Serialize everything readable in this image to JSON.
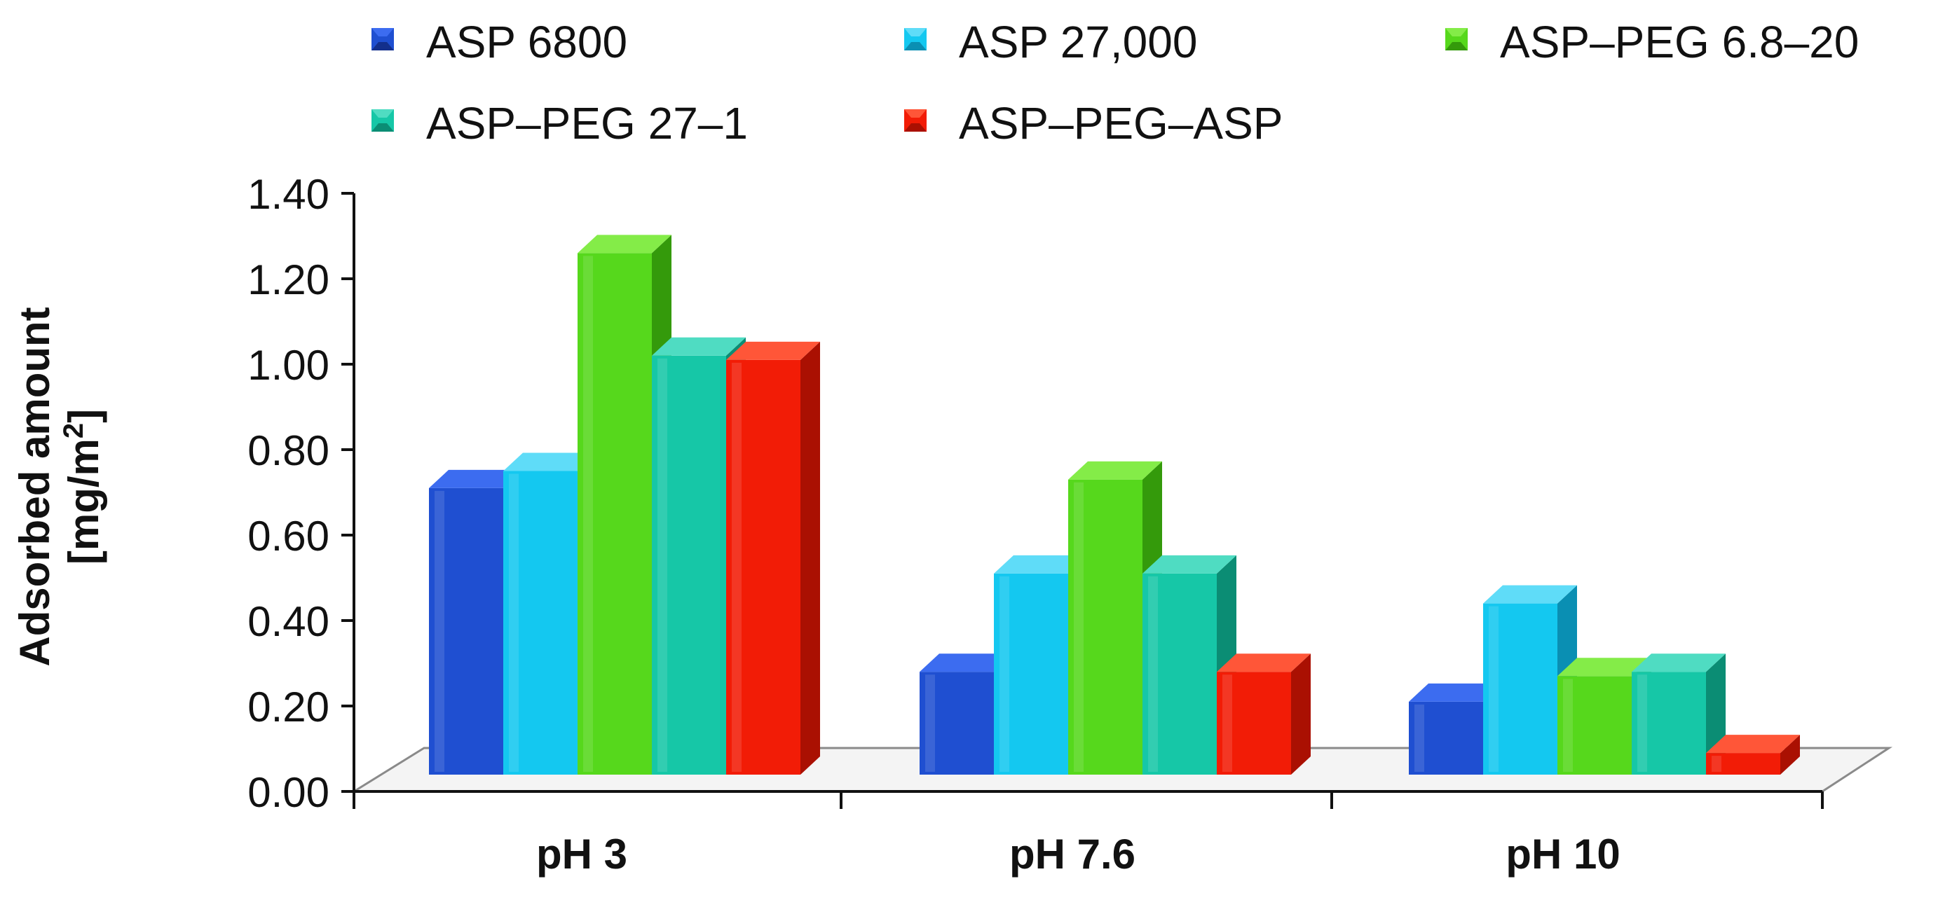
{
  "chart_data": {
    "type": "bar",
    "style": "3d-clustered",
    "title": "",
    "xlabel": "",
    "ylabel_lines": [
      "Adsorbed amount",
      "[mg/m²]"
    ],
    "ylabel_parts": {
      "main": "Adsorbed amount",
      "unit_prefix": "[mg/m",
      "unit_sup": "2",
      "unit_suffix": "]"
    },
    "ylim": [
      0,
      1.4
    ],
    "y_ticks": [
      "0.00",
      "0.20",
      "0.40",
      "0.60",
      "0.80",
      "1.00",
      "1.20",
      "1.40"
    ],
    "y_tick_values": [
      0,
      0.2,
      0.4,
      0.6,
      0.8,
      1.0,
      1.2,
      1.4
    ],
    "categories": [
      "pH 3",
      "pH 7.6",
      "pH 10"
    ],
    "legend_position": "top",
    "series": [
      {
        "name": "ASP 6800",
        "color": "#1f4fd1",
        "side": "#132f8c",
        "top": "#3c6cf0",
        "values": [
          0.71,
          0.28,
          0.21
        ]
      },
      {
        "name": "ASP 27,000",
        "color": "#14c8f0",
        "side": "#0a8fb3",
        "top": "#5fdcf8",
        "values": [
          0.75,
          0.51,
          0.44
        ]
      },
      {
        "name": "ASP–PEG 6.8–20",
        "color": "#56d81c",
        "side": "#349a0b",
        "top": "#84ec48",
        "values": [
          1.26,
          0.73,
          0.27
        ]
      },
      {
        "name": "ASP–PEG 27–1",
        "color": "#16c7a7",
        "side": "#0b8d74",
        "top": "#4fdcc2",
        "values": [
          1.02,
          0.51,
          0.28
        ]
      },
      {
        "name": "ASP–PEG–ASP",
        "color": "#f21c06",
        "side": "#aa1002",
        "top": "#ff5638",
        "values": [
          1.01,
          0.28,
          0.09
        ]
      }
    ]
  }
}
